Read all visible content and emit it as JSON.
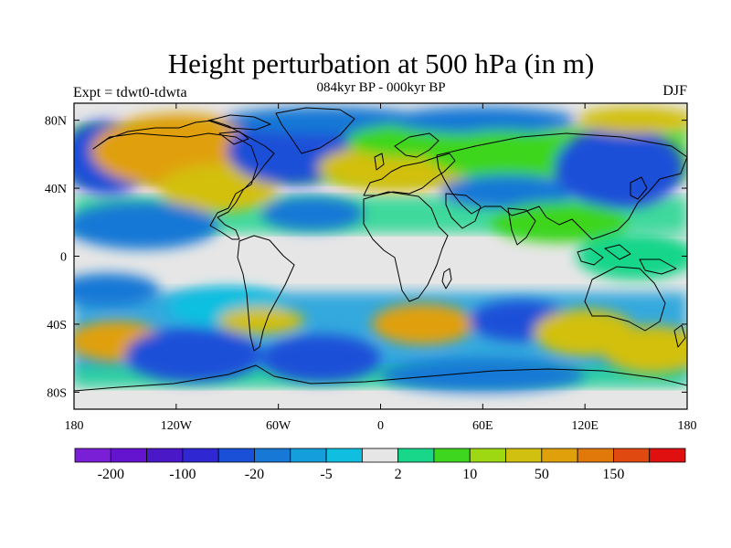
{
  "title": "Height perturbation at 500 hPa (in m)",
  "subtitle": "084kyr BP - 000kyr BP",
  "expt_label": "Expt = tdwt0-tdwta",
  "season_label": "DJF",
  "map": {
    "projection": "equirectangular",
    "lon_range": [
      -180,
      180
    ],
    "lat_range": [
      -90,
      90
    ],
    "lat_ticks": [
      {
        "lat": 80,
        "label": "80N"
      },
      {
        "lat": 40,
        "label": "40N"
      },
      {
        "lat": 0,
        "label": "0"
      },
      {
        "lat": -40,
        "label": "40S"
      },
      {
        "lat": -80,
        "label": "80S"
      }
    ],
    "lon_ticks": [
      {
        "lon": -180,
        "label": "180"
      },
      {
        "lon": -120,
        "label": "120W"
      },
      {
        "lon": -60,
        "label": "60W"
      },
      {
        "lon": 0,
        "label": "0"
      },
      {
        "lon": 60,
        "label": "60E"
      },
      {
        "lon": 120,
        "label": "120E"
      },
      {
        "lon": 180,
        "label": "180"
      }
    ]
  },
  "colorbar": {
    "colors": [
      "#7a1fd6",
      "#6414cf",
      "#4b18c8",
      "#2f28d2",
      "#1a4fd8",
      "#1878d6",
      "#149fdc",
      "#10bfe0",
      "#e6e6e6",
      "#18d68a",
      "#3ed61e",
      "#9ed812",
      "#d2c010",
      "#e0a00c",
      "#e0780a",
      "#e04a10",
      "#e01010"
    ],
    "labels": [
      {
        "boundary": 1,
        "text": "-200"
      },
      {
        "boundary": 3,
        "text": "-100"
      },
      {
        "boundary": 5,
        "text": "-20"
      },
      {
        "boundary": 7,
        "text": "-5"
      },
      {
        "boundary": 9,
        "text": "2"
      },
      {
        "boundary": 11,
        "text": "10"
      },
      {
        "boundary": 13,
        "text": "50"
      },
      {
        "boundary": 15,
        "text": "150"
      }
    ]
  },
  "field_regions": [
    {
      "lon": -160,
      "lat": 58,
      "rx": 28,
      "ry": 22,
      "color": "#1a4fd8"
    },
    {
      "lon": -118,
      "lat": 62,
      "rx": 52,
      "ry": 22,
      "color": "#e0a00c"
    },
    {
      "lon": -95,
      "lat": 40,
      "rx": 35,
      "ry": 14,
      "color": "#d2c010"
    },
    {
      "lon": -52,
      "lat": 62,
      "rx": 38,
      "ry": 20,
      "color": "#1a4fd8"
    },
    {
      "lon": -32,
      "lat": 80,
      "rx": 60,
      "ry": 8,
      "color": "#1878d6"
    },
    {
      "lon": 8,
      "lat": 52,
      "rx": 45,
      "ry": 14,
      "color": "#d2c010"
    },
    {
      "lon": 20,
      "lat": 68,
      "rx": 40,
      "ry": 10,
      "color": "#3ed61e"
    },
    {
      "lon": 60,
      "lat": 80,
      "rx": 55,
      "ry": 8,
      "color": "#1878d6"
    },
    {
      "lon": 72,
      "lat": 60,
      "rx": 45,
      "ry": 14,
      "color": "#3ed61e"
    },
    {
      "lon": 75,
      "lat": 38,
      "rx": 40,
      "ry": 10,
      "color": "#1878d6"
    },
    {
      "lon": 140,
      "lat": 52,
      "rx": 38,
      "ry": 24,
      "color": "#1a4fd8"
    },
    {
      "lon": 150,
      "lat": 80,
      "rx": 35,
      "ry": 8,
      "color": "#d2c010"
    },
    {
      "lon": 105,
      "lat": 20,
      "rx": 40,
      "ry": 12,
      "color": "#3ed61e"
    },
    {
      "lon": -140,
      "lat": 18,
      "rx": 45,
      "ry": 14,
      "color": "#1878d6"
    },
    {
      "lon": -40,
      "lat": 25,
      "rx": 30,
      "ry": 10,
      "color": "#1878d6"
    },
    {
      "lon": 150,
      "lat": 0,
      "rx": 35,
      "ry": 14,
      "color": "#18d68a"
    },
    {
      "lon": -160,
      "lat": -20,
      "rx": 30,
      "ry": 10,
      "color": "#1878d6"
    },
    {
      "lon": -90,
      "lat": -30,
      "rx": 35,
      "ry": 12,
      "color": "#10bfe0"
    },
    {
      "lon": -70,
      "lat": -38,
      "rx": 25,
      "ry": 8,
      "color": "#d2c010"
    },
    {
      "lon": -155,
      "lat": -50,
      "rx": 28,
      "ry": 12,
      "color": "#e0a00c"
    },
    {
      "lon": -110,
      "lat": -58,
      "rx": 40,
      "ry": 16,
      "color": "#1a4fd8"
    },
    {
      "lon": -35,
      "lat": -60,
      "rx": 35,
      "ry": 14,
      "color": "#1a4fd8"
    },
    {
      "lon": 25,
      "lat": -40,
      "rx": 30,
      "ry": 12,
      "color": "#e0a00c"
    },
    {
      "lon": 82,
      "lat": -38,
      "rx": 30,
      "ry": 12,
      "color": "#1a4fd8"
    },
    {
      "lon": 120,
      "lat": -45,
      "rx": 30,
      "ry": 14,
      "color": "#d2c010"
    },
    {
      "lon": 160,
      "lat": -55,
      "rx": 30,
      "ry": 14,
      "color": "#d2c010"
    },
    {
      "lon": 60,
      "lat": -70,
      "rx": 60,
      "ry": 10,
      "color": "#1878d6"
    }
  ]
}
